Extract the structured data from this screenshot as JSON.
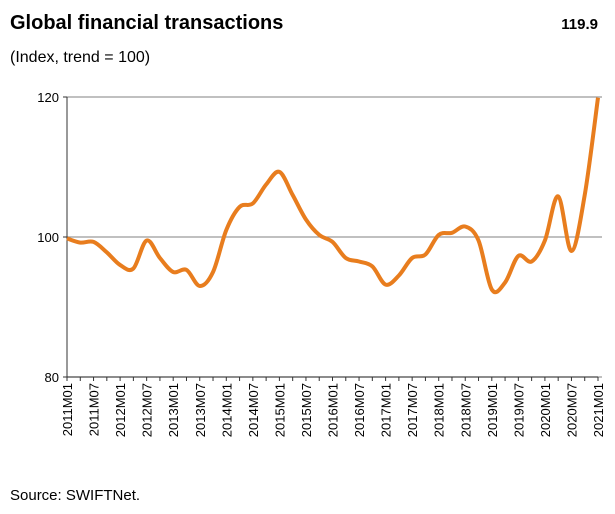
{
  "chart_data": {
    "type": "line",
    "title": "Global financial transactions",
    "subtitle": "(Index, trend = 100)",
    "annotation": "119.9",
    "source": "Source: SWIFTNet.",
    "categories": [
      "2011M01",
      null,
      "2011M07",
      null,
      "2012M01",
      null,
      "2012M07",
      null,
      "2013M01",
      null,
      "2013M07",
      null,
      "2014M01",
      null,
      "2014M07",
      null,
      "2015M01",
      null,
      "2015M07",
      null,
      "2016M01",
      null,
      "2016M07",
      null,
      "2017M01",
      null,
      "2017M07",
      null,
      "2018M01",
      null,
      "2018M07",
      null,
      "2019M01",
      null,
      "2019M07",
      null,
      "2020M01",
      null,
      "2020M07",
      null,
      "2021M01"
    ],
    "series": [
      {
        "name": "Global financial transactions",
        "color": "#e87d1e",
        "values": [
          99.8,
          99.2,
          99.3,
          97.8,
          96.0,
          95.5,
          99.5,
          97.0,
          95.0,
          95.3,
          93.0,
          95.0,
          101.0,
          104.3,
          104.8,
          107.5,
          109.3,
          106.0,
          102.5,
          100.3,
          99.3,
          97.0,
          96.5,
          95.8,
          93.2,
          94.5,
          97.0,
          97.5,
          100.3,
          100.6,
          101.5,
          99.5,
          92.5,
          93.5,
          97.3,
          96.5,
          99.5,
          105.8,
          98.0,
          106.0,
          119.9
        ]
      }
    ],
    "ylim": [
      80,
      120
    ],
    "yticks": [
      80,
      100,
      120
    ],
    "grid": true
  }
}
